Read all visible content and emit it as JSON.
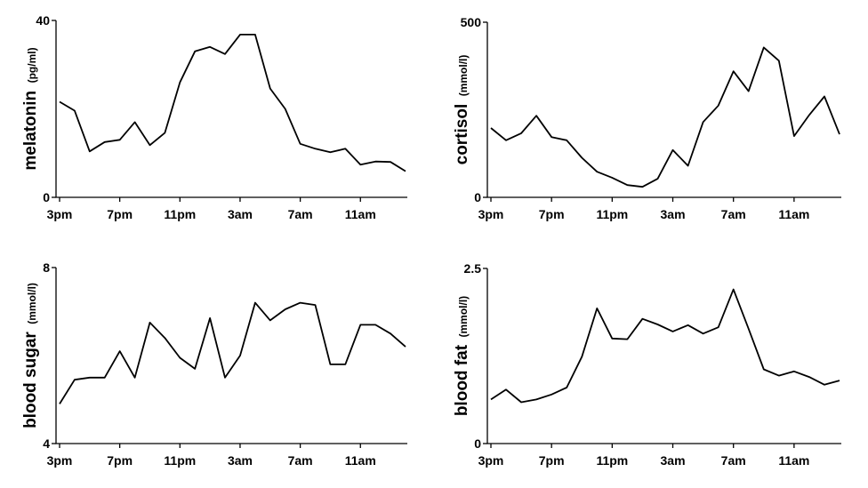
{
  "chart_data": [
    {
      "type": "line",
      "ylabel": "melatonin",
      "yunit": "(pg/ml)",
      "ylim": [
        0,
        40
      ],
      "yticks": [
        0,
        40
      ],
      "xticks": [
        "3pm",
        "7pm",
        "11pm",
        "3am",
        "7am",
        "11am"
      ],
      "x_hours_since_3pm": [
        0,
        1,
        2,
        3,
        4,
        5,
        6,
        7,
        8,
        9,
        10,
        11,
        12,
        13,
        14,
        15,
        16,
        17,
        18,
        19,
        20,
        21,
        22,
        23
      ],
      "values": [
        21.6,
        19.6,
        10.4,
        12.5,
        13,
        17,
        11.8,
        14.6,
        26,
        33,
        34,
        32.4,
        36.8,
        36.8,
        24.6,
        20,
        12.1,
        11,
        10.2,
        11,
        7.4,
        8.1,
        8,
        5.9
      ]
    },
    {
      "type": "line",
      "ylabel": "cortisol",
      "yunit": "(mmol/l)",
      "ylim": [
        0,
        500
      ],
      "yticks": [
        0,
        500
      ],
      "xticks": [
        "3pm",
        "7pm",
        "11pm",
        "3am",
        "7am",
        "11am"
      ],
      "x_hours_since_3pm": [
        0,
        1,
        2,
        3,
        4,
        5,
        6,
        7,
        8,
        9,
        10,
        11,
        12,
        13,
        14,
        15,
        16,
        17,
        18,
        19,
        20,
        21,
        22,
        23
      ],
      "values": [
        198,
        163,
        183,
        233,
        172,
        163,
        113,
        73,
        56,
        35,
        30,
        53,
        135,
        90,
        215,
        262,
        360,
        303,
        428,
        390,
        175,
        235,
        288,
        180
      ]
    },
    {
      "type": "line",
      "ylabel": "blood sugar",
      "yunit": "(mmol/l)",
      "ylim": [
        4,
        8
      ],
      "yticks": [
        4,
        8
      ],
      "xticks": [
        "3pm",
        "7pm",
        "11pm",
        "3am",
        "7am",
        "11am"
      ],
      "x_hours_since_3pm": [
        0,
        1,
        2,
        3,
        4,
        5,
        6,
        7,
        8,
        9,
        10,
        11,
        12,
        13,
        14,
        15,
        16,
        17,
        18,
        19,
        20,
        21,
        22,
        23
      ],
      "values": [
        4.9,
        5.45,
        5.5,
        5.5,
        6.1,
        5.5,
        6.75,
        6.4,
        5.95,
        5.7,
        6.85,
        5.5,
        6.0,
        7.2,
        6.8,
        7.05,
        7.2,
        7.15,
        5.8,
        5.8,
        6.7,
        6.7,
        6.5,
        6.2
      ]
    },
    {
      "type": "line",
      "ylabel": "blood fat",
      "yunit": "(mmol/l)",
      "ylim": [
        0,
        2.5
      ],
      "yticks": [
        0,
        2.5
      ],
      "xticks": [
        "3pm",
        "7pm",
        "11pm",
        "3am",
        "7am",
        "11am"
      ],
      "x_hours_since_3pm": [
        0,
        1,
        2,
        3,
        4,
        5,
        6,
        7,
        8,
        9,
        10,
        11,
        12,
        13,
        14,
        15,
        16,
        17,
        18,
        19,
        20,
        21,
        22,
        23
      ],
      "values": [
        0.63,
        0.77,
        0.59,
        0.63,
        0.7,
        0.8,
        1.24,
        1.93,
        1.5,
        1.49,
        1.78,
        1.7,
        1.6,
        1.69,
        1.57,
        1.66,
        2.2,
        1.64,
        1.06,
        0.97,
        1.03,
        0.95,
        0.84,
        0.9
      ]
    }
  ]
}
